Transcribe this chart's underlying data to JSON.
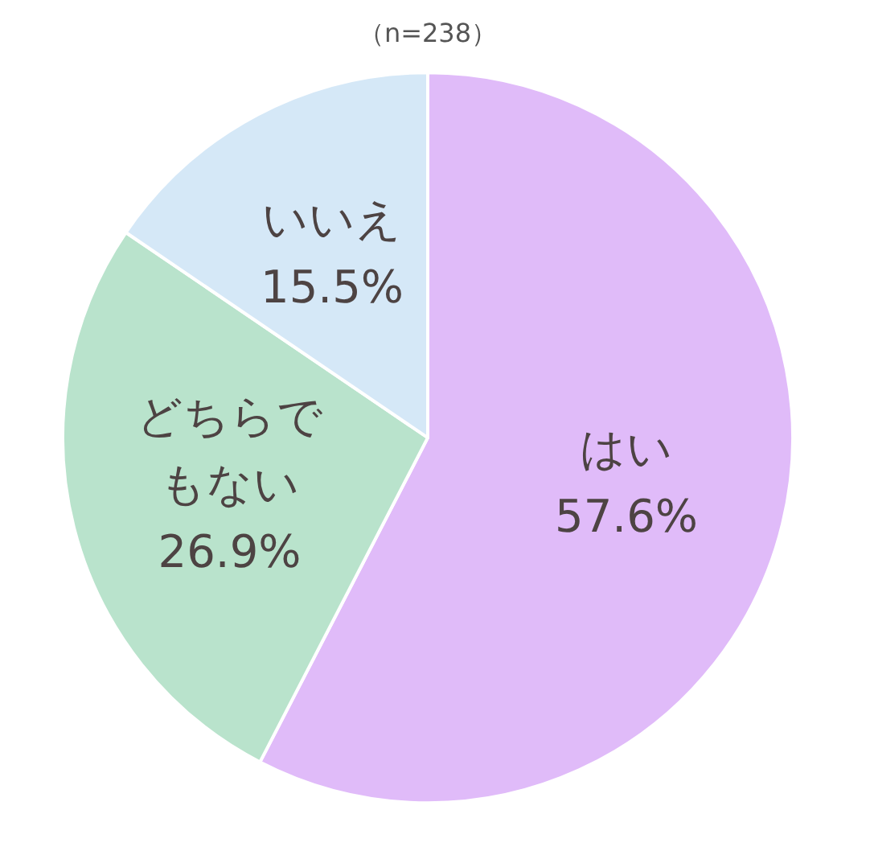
{
  "chart_data": {
    "type": "pie",
    "title": "（n=238）",
    "categories": [
      "はい",
      "どちらでもない",
      "いいえ"
    ],
    "values": [
      57.6,
      26.9,
      15.5
    ],
    "colors": [
      "#e0bbf9",
      "#b9e3cc",
      "#d5e8f7"
    ],
    "value_labels": [
      "57.6%",
      "26.9%",
      "15.5%"
    ],
    "legend": false
  }
}
